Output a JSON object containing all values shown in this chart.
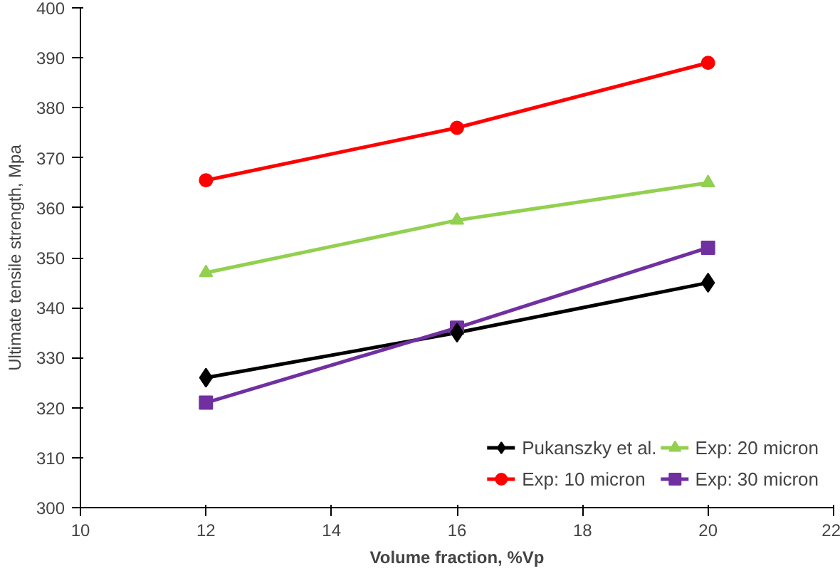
{
  "chart_data": {
    "type": "line",
    "xlabel": "Volume fraction, %Vp",
    "ylabel": "Ultimate tensile strength, Mpa",
    "x": [
      12,
      16,
      20
    ],
    "series": [
      {
        "name": "Pukanszky et al.",
        "color": "#000000",
        "marker": "diamond",
        "values": [
          326,
          335,
          345
        ]
      },
      {
        "name": "Exp: 10 micron",
        "color": "#ff0000",
        "marker": "circle",
        "values": [
          365.5,
          376,
          389
        ]
      },
      {
        "name": "Exp: 20 micron",
        "color": "#92d050",
        "marker": "triangle",
        "values": [
          347,
          357.5,
          365
        ]
      },
      {
        "name": "Exp: 30 micron",
        "color": "#7030a0",
        "marker": "square",
        "values": [
          321,
          336,
          352
        ]
      }
    ],
    "xlim": [
      10,
      22
    ],
    "xticks": [
      10,
      12,
      14,
      16,
      18,
      20,
      22
    ],
    "ylim": [
      300,
      400
    ],
    "yticks": [
      300,
      310,
      320,
      330,
      340,
      350,
      360,
      370,
      380,
      390,
      400
    ],
    "grid": false,
    "legend": "bottom right"
  }
}
